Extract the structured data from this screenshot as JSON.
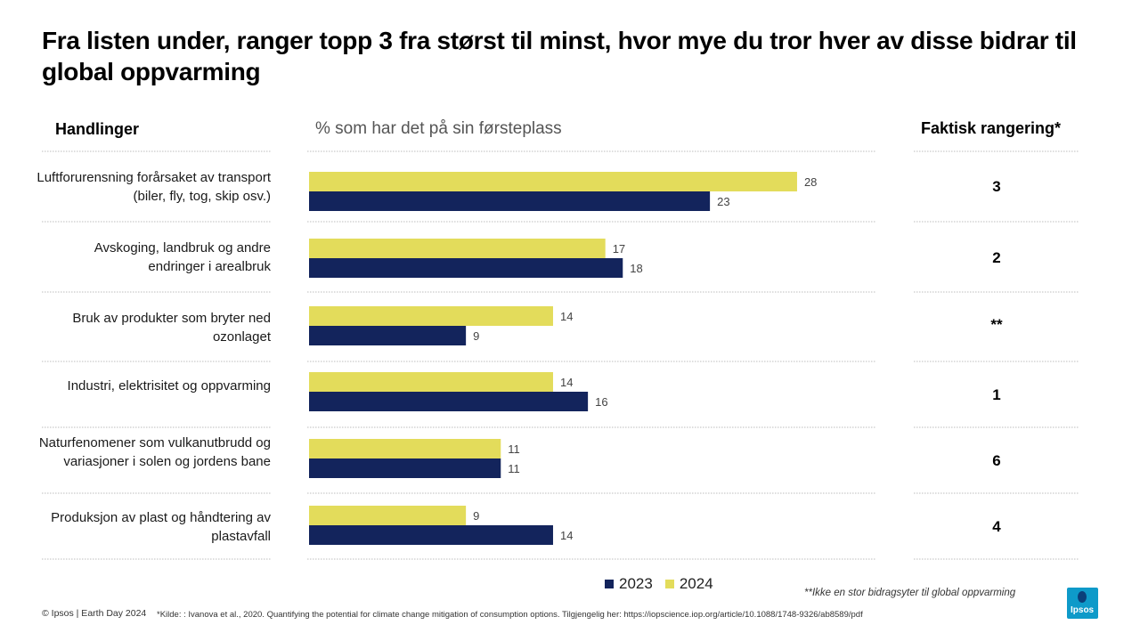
{
  "title": "Fra listen under, ranger topp 3 fra størst til minst, hvor mye du tror hver av disse bidrar til global oppvarming",
  "headers": {
    "actions": "Handlinger",
    "percent": "% som har det på sin førsteplass",
    "rank": "Faktisk rangering*"
  },
  "rows": [
    {
      "label": "Luftforurensning forårsaket av transport (biler, fly, tog, skip osv.)",
      "rank": "3"
    },
    {
      "label": "Avskoging, landbruk og andre endringer i arealbruk",
      "rank": "2"
    },
    {
      "label": "Bruk av produkter som bryter ned ozonlaget",
      "rank": "**"
    },
    {
      "label": "Industri, elektrisitet og oppvarming",
      "rank": "1"
    },
    {
      "label": "Naturfenomener som vulkanutbrudd og variasjoner i solen og jordens bane",
      "rank": "6"
    },
    {
      "label": "Produksjon av plast og håndtering av plastavfall",
      "rank": "4"
    }
  ],
  "chart_data": {
    "type": "bar",
    "orientation": "horizontal",
    "categories": [
      "Luftforurensning forårsaket av transport (biler, fly, tog, skip osv.)",
      "Avskoging, landbruk og andre endringer i arealbruk",
      "Bruk av produkter som bryter ned ozonlaget",
      "Industri, elektrisitet og oppvarming",
      "Naturfenomener som vulkanutbrudd og variasjoner i solen og jordens bane",
      "Produksjon av plast og håndtering av plastavfall"
    ],
    "series": [
      {
        "name": "2024",
        "color": "#e3dc5b",
        "values": [
          28,
          17,
          14,
          14,
          11,
          9
        ]
      },
      {
        "name": "2023",
        "color": "#13245c",
        "values": [
          23,
          18,
          9,
          16,
          11,
          14
        ]
      }
    ],
    "xlim": [
      0,
      32
    ],
    "grid": false,
    "legend_position": "bottom"
  },
  "legend": {
    "a": "2023",
    "b": "2024"
  },
  "colors": {
    "series_2023": "#13245c",
    "series_2024": "#e3dc5b",
    "logo": "#0e9ac9"
  },
  "footnote_rank": "**Ikke en stor bidragsyter til global oppvarming",
  "copyright": "© Ipsos | Earth Day 2024",
  "source": "*Kilde: : Ivanova et al., 2020. Quantifying the potential for climate change mitigation of consumption options. Tilgjengelig her: https://iopscience.iop.org/article/10.1088/1748-9326/ab8589/pdf",
  "logo_text": "Ipsos"
}
